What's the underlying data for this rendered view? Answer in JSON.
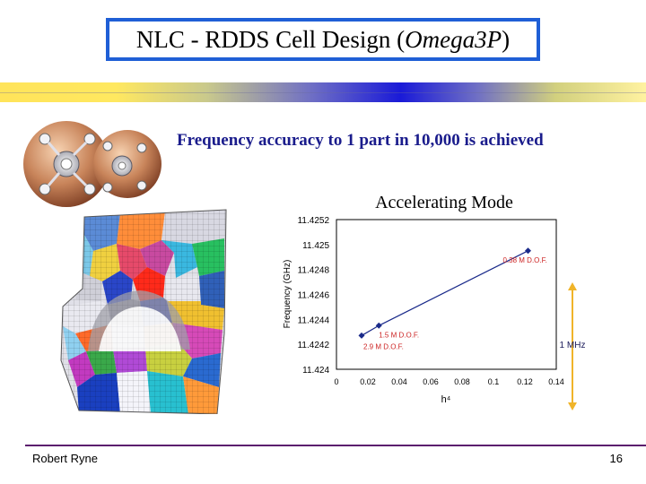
{
  "slide": {
    "title_main": "NLC - RDDS Cell Design (",
    "title_italic": "Omega3P",
    "title_end": ")",
    "subtitle": "Frequency accuracy to 1 part in 10,000 is achieved",
    "footer_author": "Robert Ryne",
    "footer_page": "16"
  },
  "colors": {
    "title_border": "#1f5fd6",
    "subtitle": "#1a1c8c",
    "series": "#1a2a8a",
    "annotation_red": "#cc2222",
    "arrow": "#f0b429",
    "footer_line": "#5b1e6e"
  },
  "chart_data": {
    "type": "scatter",
    "title": "Accelerating Mode",
    "xlabel": "h⁴",
    "ylabel": "Frequency (GHz)",
    "xlim": [
      0,
      0.14
    ],
    "ylim": [
      11.424,
      11.4252
    ],
    "x_ticks": [
      "0",
      "0.02",
      "0.04",
      "0.06",
      "0.08",
      "0.1",
      "0.12",
      "0.14"
    ],
    "y_ticks": [
      "11.4252",
      "11.425",
      "11.4248",
      "11.4246",
      "11.4244",
      "11.4242",
      "11.424"
    ],
    "series": [
      {
        "name": "Accelerating Mode",
        "x": [
          0.016,
          0.027,
          0.122
        ],
        "y": [
          11.42427,
          11.42435,
          11.42495
        ],
        "connected": true
      }
    ],
    "point_labels": [
      "2.9 M D.O.F.",
      "1.5 M D.O.F.",
      "0.38 M D.O.F."
    ],
    "range_annotation": "1 MHz"
  }
}
